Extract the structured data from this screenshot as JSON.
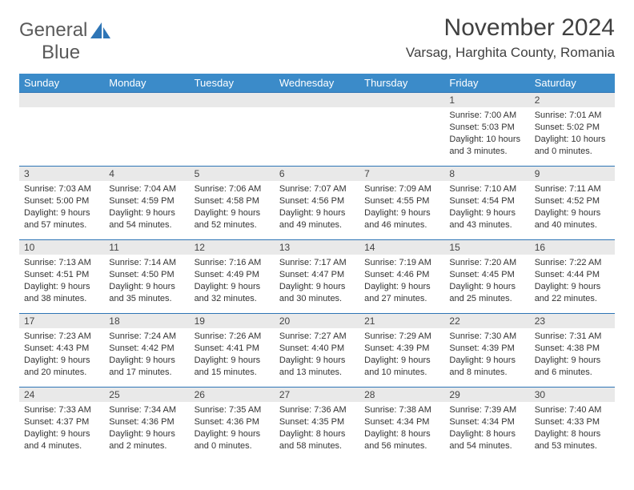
{
  "logo": {
    "text1": "General",
    "text2": "Blue"
  },
  "title": "November 2024",
  "location": "Varsag, Harghita County, Romania",
  "colors": {
    "header_bg": "#3b8bc9",
    "header_text": "#ffffff",
    "row_divider": "#2e75b6",
    "daynum_bg": "#e9e9e9",
    "logo_blue": "#2e75b6",
    "text": "#333333"
  },
  "weekdays": [
    "Sunday",
    "Monday",
    "Tuesday",
    "Wednesday",
    "Thursday",
    "Friday",
    "Saturday"
  ],
  "weeks": [
    [
      null,
      null,
      null,
      null,
      null,
      {
        "n": "1",
        "sr": "7:00 AM",
        "ss": "5:03 PM",
        "dl": "10 hours and 3 minutes."
      },
      {
        "n": "2",
        "sr": "7:01 AM",
        "ss": "5:02 PM",
        "dl": "10 hours and 0 minutes."
      }
    ],
    [
      {
        "n": "3",
        "sr": "7:03 AM",
        "ss": "5:00 PM",
        "dl": "9 hours and 57 minutes."
      },
      {
        "n": "4",
        "sr": "7:04 AM",
        "ss": "4:59 PM",
        "dl": "9 hours and 54 minutes."
      },
      {
        "n": "5",
        "sr": "7:06 AM",
        "ss": "4:58 PM",
        "dl": "9 hours and 52 minutes."
      },
      {
        "n": "6",
        "sr": "7:07 AM",
        "ss": "4:56 PM",
        "dl": "9 hours and 49 minutes."
      },
      {
        "n": "7",
        "sr": "7:09 AM",
        "ss": "4:55 PM",
        "dl": "9 hours and 46 minutes."
      },
      {
        "n": "8",
        "sr": "7:10 AM",
        "ss": "4:54 PM",
        "dl": "9 hours and 43 minutes."
      },
      {
        "n": "9",
        "sr": "7:11 AM",
        "ss": "4:52 PM",
        "dl": "9 hours and 40 minutes."
      }
    ],
    [
      {
        "n": "10",
        "sr": "7:13 AM",
        "ss": "4:51 PM",
        "dl": "9 hours and 38 minutes."
      },
      {
        "n": "11",
        "sr": "7:14 AM",
        "ss": "4:50 PM",
        "dl": "9 hours and 35 minutes."
      },
      {
        "n": "12",
        "sr": "7:16 AM",
        "ss": "4:49 PM",
        "dl": "9 hours and 32 minutes."
      },
      {
        "n": "13",
        "sr": "7:17 AM",
        "ss": "4:47 PM",
        "dl": "9 hours and 30 minutes."
      },
      {
        "n": "14",
        "sr": "7:19 AM",
        "ss": "4:46 PM",
        "dl": "9 hours and 27 minutes."
      },
      {
        "n": "15",
        "sr": "7:20 AM",
        "ss": "4:45 PM",
        "dl": "9 hours and 25 minutes."
      },
      {
        "n": "16",
        "sr": "7:22 AM",
        "ss": "4:44 PM",
        "dl": "9 hours and 22 minutes."
      }
    ],
    [
      {
        "n": "17",
        "sr": "7:23 AM",
        "ss": "4:43 PM",
        "dl": "9 hours and 20 minutes."
      },
      {
        "n": "18",
        "sr": "7:24 AM",
        "ss": "4:42 PM",
        "dl": "9 hours and 17 minutes."
      },
      {
        "n": "19",
        "sr": "7:26 AM",
        "ss": "4:41 PM",
        "dl": "9 hours and 15 minutes."
      },
      {
        "n": "20",
        "sr": "7:27 AM",
        "ss": "4:40 PM",
        "dl": "9 hours and 13 minutes."
      },
      {
        "n": "21",
        "sr": "7:29 AM",
        "ss": "4:39 PM",
        "dl": "9 hours and 10 minutes."
      },
      {
        "n": "22",
        "sr": "7:30 AM",
        "ss": "4:39 PM",
        "dl": "9 hours and 8 minutes."
      },
      {
        "n": "23",
        "sr": "7:31 AM",
        "ss": "4:38 PM",
        "dl": "9 hours and 6 minutes."
      }
    ],
    [
      {
        "n": "24",
        "sr": "7:33 AM",
        "ss": "4:37 PM",
        "dl": "9 hours and 4 minutes."
      },
      {
        "n": "25",
        "sr": "7:34 AM",
        "ss": "4:36 PM",
        "dl": "9 hours and 2 minutes."
      },
      {
        "n": "26",
        "sr": "7:35 AM",
        "ss": "4:36 PM",
        "dl": "9 hours and 0 minutes."
      },
      {
        "n": "27",
        "sr": "7:36 AM",
        "ss": "4:35 PM",
        "dl": "8 hours and 58 minutes."
      },
      {
        "n": "28",
        "sr": "7:38 AM",
        "ss": "4:34 PM",
        "dl": "8 hours and 56 minutes."
      },
      {
        "n": "29",
        "sr": "7:39 AM",
        "ss": "4:34 PM",
        "dl": "8 hours and 54 minutes."
      },
      {
        "n": "30",
        "sr": "7:40 AM",
        "ss": "4:33 PM",
        "dl": "8 hours and 53 minutes."
      }
    ]
  ],
  "labels": {
    "sunrise": "Sunrise:",
    "sunset": "Sunset:",
    "daylight": "Daylight:"
  }
}
